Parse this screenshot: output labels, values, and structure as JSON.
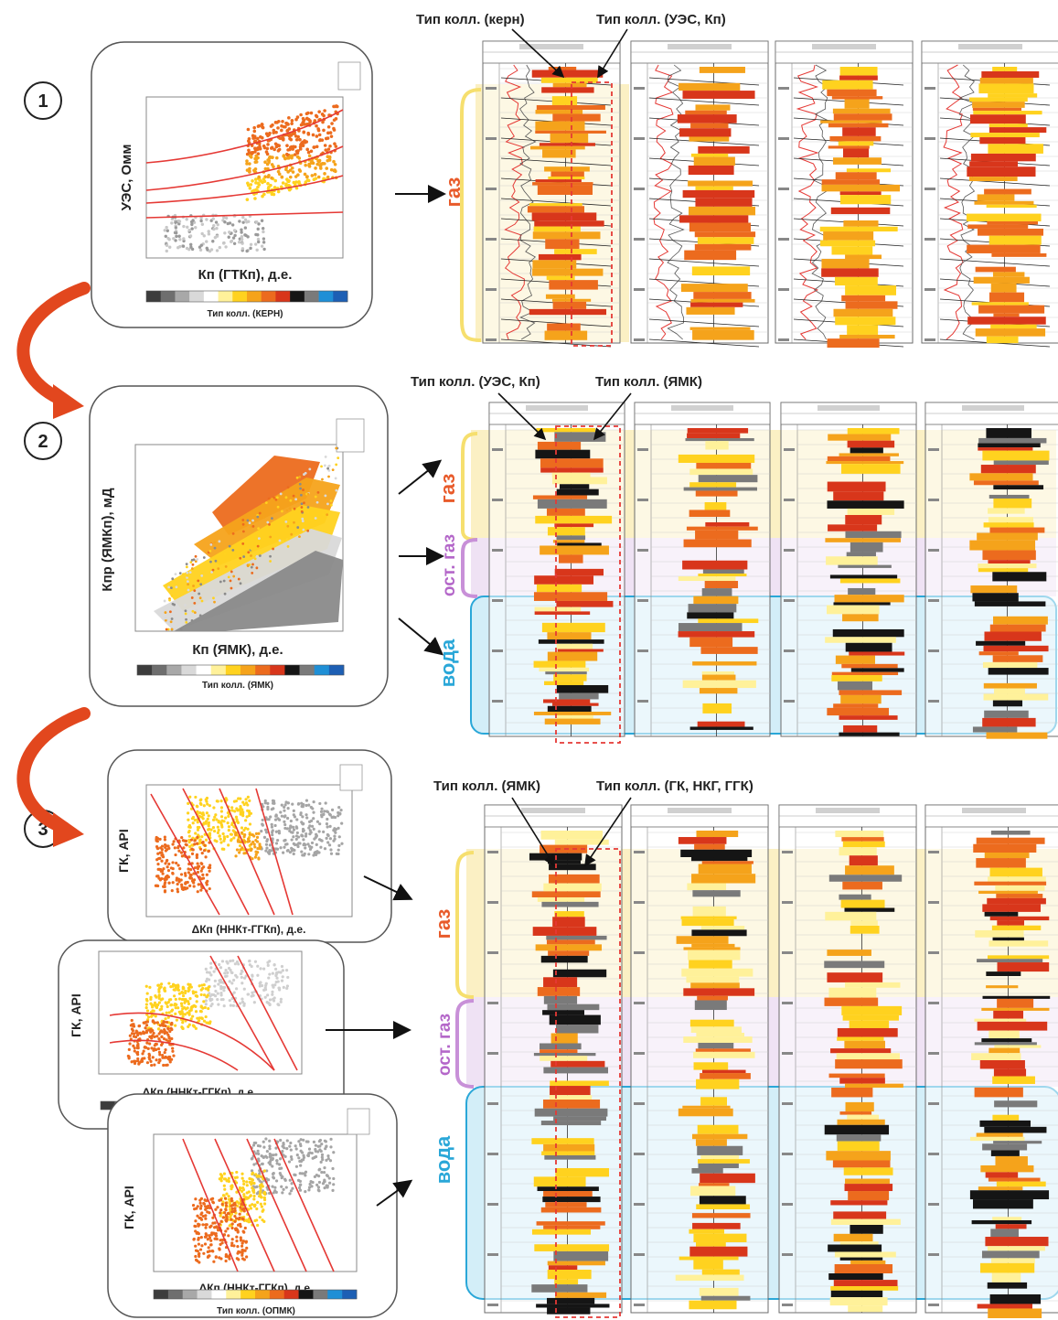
{
  "steps": [
    "1",
    "2",
    "3"
  ],
  "panel1": {
    "ylabel": "УЭС, Омм",
    "xlabel": "Кп (ГТКп), д.е.",
    "colorbar_label": "Тип колл. (КЕРН)"
  },
  "panel2": {
    "ylabel": "Кпр (ЯМКп), мД",
    "xlabel": "Кп (ЯМК), д.е.",
    "colorbar_label": "Тип колл. (ЯМК)"
  },
  "panel3": {
    "a": {
      "ylabel": "ГК, API",
      "xlabel": "ΔКп (ННКт-ГГКп), д.е."
    },
    "b": {
      "ylabel": "ГК, API",
      "xlabel": "ΔКп (ННКт-ГГКп), д.е."
    },
    "c": {
      "ylabel": "ГК, API",
      "xlabel": "ΔКп (ННКт-ГГКп), д.е.",
      "colorbar_label": "Тип колл. (ОПМК)"
    }
  },
  "annotations": {
    "row1_left": "Тип колл. (керн)",
    "row1_right": "Тип колл. (УЭС, Кп)",
    "row2_left": "Тип колл. (УЭС, Кп)",
    "row2_right": "Тип колл. (ЯМК)",
    "row3_left": "Тип колл. (ЯМК)",
    "row3_right": "Тип колл. (ГК, НКГ, ГГК)"
  },
  "zones": {
    "gas": "газ",
    "residual_gas": "ост. газ",
    "water": "вода"
  },
  "colors": {
    "gas": "#e85a2a",
    "residual_gas": "#b467c9",
    "water": "#2aa7d8",
    "arrow": "#e2471e",
    "gas_band": "#fbf0c4",
    "resgas_band": "#efe2f4",
    "water_band": "#d3eef8"
  },
  "colorbar": [
    "#3c3c3c",
    "#6e6e6e",
    "#a8a8a8",
    "#d9d9d9",
    "#ffffff",
    "#fff19a",
    "#ffd21f",
    "#f5a31b",
    "#ec6b1e",
    "#d8361b",
    "#151515",
    "#7a7a7a",
    "#1f8fd6",
    "#1d5fb4"
  ]
}
